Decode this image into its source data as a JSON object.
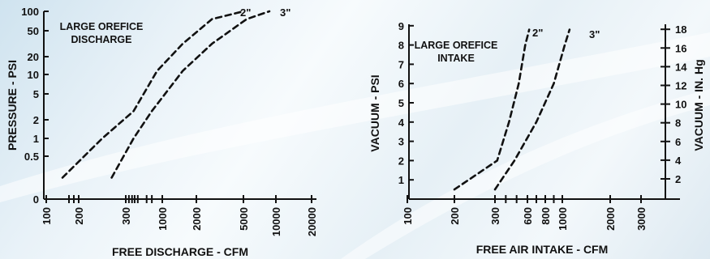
{
  "charts": [
    {
      "type": "line",
      "annotation_lines": [
        "LARGE OREFICE",
        "DISCHARGE"
      ],
      "xlabel": "FREE DISCHARGE - CFM",
      "ylabel": "PRESSURE - PSI",
      "x_ticks": [
        "100",
        "200",
        "300",
        "1000",
        "2000",
        "5000",
        "10000",
        "20000"
      ],
      "y_ticks": [
        "0",
        "0.5",
        "1",
        "2",
        "5",
        "10",
        "20",
        "50",
        "100"
      ],
      "series": [
        {
          "label": "2\"",
          "x": [
            150,
            250,
            450,
            900,
            1600,
            3000,
            5000
          ],
          "y": [
            0.25,
            1,
            3,
            12,
            35,
            80,
            100
          ]
        },
        {
          "label": "3\"",
          "x": [
            270,
            450,
            800,
            1600,
            3000,
            5500,
            9000
          ],
          "y": [
            0.25,
            1,
            3,
            12,
            35,
            80,
            100
          ]
        }
      ]
    },
    {
      "type": "line",
      "annotation_lines": [
        "LARGE OREFICE",
        "INTAKE"
      ],
      "xlabel": "FREE AIR INTAKE - CFM",
      "ylabel": "VACUUM - PSI",
      "y2label": "VACUUM - IN. Hg",
      "x_ticks": [
        "100",
        "200",
        "300",
        "600",
        "800",
        "1000",
        "2000",
        "3000"
      ],
      "y_ticks": [
        "1",
        "2",
        "3",
        "4",
        "5",
        "6",
        "7",
        "8",
        "9"
      ],
      "y2_ticks": [
        "2",
        "4",
        "6",
        "8",
        "10",
        "12",
        "14",
        "16",
        "18"
      ],
      "series": [
        {
          "label": "2\"",
          "x": [
            200,
            320,
            430,
            520,
            580,
            620
          ],
          "y": [
            0.5,
            2,
            4,
            6,
            8,
            8.8
          ]
        },
        {
          "label": "3\"",
          "x": [
            300,
            480,
            700,
            900,
            1050,
            1150
          ],
          "y": [
            0.5,
            2,
            4,
            6,
            8,
            8.8
          ]
        }
      ]
    }
  ]
}
